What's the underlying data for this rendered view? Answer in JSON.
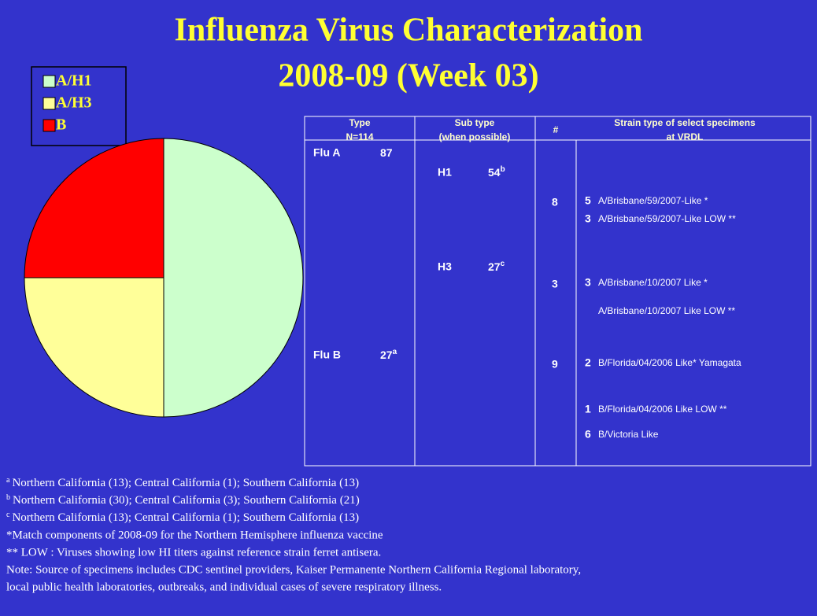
{
  "chart_data": {
    "type": "pie",
    "title": "Influenza Virus Characterization",
    "subtitle": "2008-09 (Week 03)",
    "categories": [
      "A/H1",
      "A/H3",
      "B"
    ],
    "values": [
      54,
      27,
      27
    ],
    "colors": [
      "#ccffcc",
      "#ffff99",
      "#ff0000"
    ],
    "legend": "top-left"
  },
  "table": {
    "headers": [
      [
        "Type",
        "N=114"
      ],
      [
        "Sub type",
        "(when possible)"
      ],
      [
        "#"
      ],
      [
        "Strain type of select specimens",
        "at VRDL"
      ]
    ],
    "types": [
      {
        "label": "Flu A",
        "count": 87
      },
      {
        "label": "Flu B",
        "count": 27,
        "note": "a"
      }
    ],
    "subtypes": [
      {
        "label": "H1",
        "count": 54,
        "note": "b"
      },
      {
        "label": "H3",
        "count": 27,
        "note": "c"
      }
    ],
    "groups": [
      {
        "count": 8,
        "strains": [
          {
            "count": 5,
            "name": "A/Brisbane/59/2007-Like *"
          },
          {
            "count": 3,
            "name": "A/Brisbane/59/2007-Like LOW **"
          }
        ]
      },
      {
        "count": 3,
        "strains": [
          {
            "count": 3,
            "name": "A/Brisbane/10/2007 Like *"
          },
          {
            "name": "A/Brisbane/10/2007 Like LOW **"
          }
        ]
      },
      {
        "count": 9,
        "strains": [
          {
            "count": 2,
            "name": "B/Florida/04/2006 Like* Yamagata"
          },
          {
            "count": 1,
            "name": "B/Florida/04/2006 Like LOW **"
          },
          {
            "count": 6,
            "name": "B/Victoria Like"
          }
        ]
      }
    ]
  },
  "footnotes": [
    {
      "mark": "a",
      "text": "Northern California (13); Central California (1); Southern California (13)"
    },
    {
      "mark": "b",
      "text": "Northern California (30); Central California (3); Southern California (21)"
    },
    {
      "mark": "c",
      "text": "Northern California (13); Central California (1); Southern California (13)"
    }
  ],
  "notes": [
    "*Match components of 2008-09 for the Northern Hemisphere influenza vaccine",
    "** LOW : Viruses showing low HI titers against reference strain ferret antisera.",
    "Note: Source of specimens includes CDC sentinel providers, Kaiser Permanente Northern California Regional laboratory,",
    "local public health laboratories, outbreaks, and individual cases of severe respiratory illness."
  ]
}
